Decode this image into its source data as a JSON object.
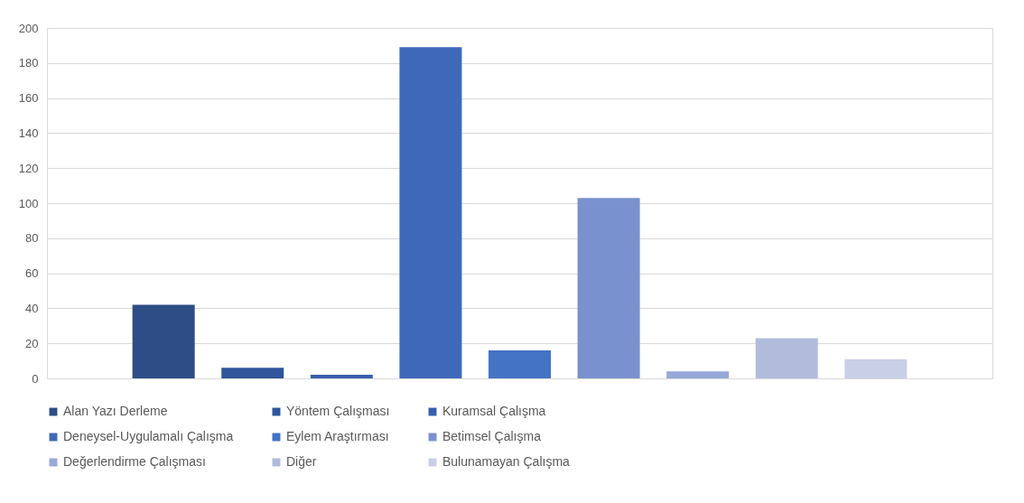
{
  "chart_data": {
    "type": "bar",
    "categories": [
      null
    ],
    "series": [
      {
        "name": "Alan Yazı Derleme",
        "color": "#2e4d87",
        "values": [
          42
        ]
      },
      {
        "name": "Yöntem Çalışması",
        "color": "#30559a",
        "values": [
          6
        ]
      },
      {
        "name": "Kuramsal Çalışma",
        "color": "#375fae",
        "values": [
          2
        ]
      },
      {
        "name": "Deneysel-Uygulamalı Çalışma",
        "color": "#3e69b8",
        "values": [
          189
        ]
      },
      {
        "name": "Eylem Araştırması",
        "color": "#4472c4",
        "values": [
          16
        ]
      },
      {
        "name": "Betimsel Çalışma",
        "color": "#7991ce",
        "values": [
          103
        ]
      },
      {
        "name": "Değerlendirme Çalışması",
        "color": "#97a8d8",
        "values": [
          4
        ]
      },
      {
        "name": "Diğer",
        "color": "#b1bcdd",
        "values": [
          23
        ]
      },
      {
        "name": "Bulunamayan Çalışma",
        "color": "#c9cfe7",
        "values": [
          11
        ]
      }
    ],
    "ylim": [
      0,
      200
    ],
    "yticks": [
      0,
      20,
      40,
      60,
      80,
      100,
      120,
      140,
      160,
      180,
      200
    ],
    "grid": "y",
    "legend": "bottom"
  }
}
